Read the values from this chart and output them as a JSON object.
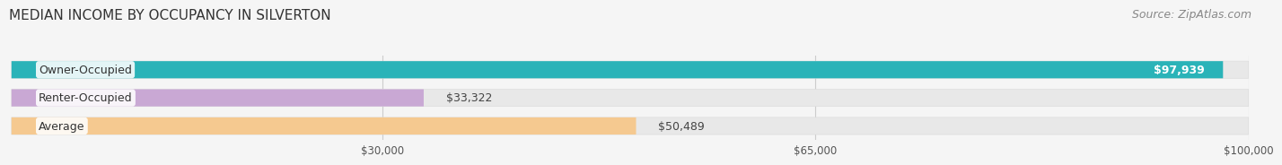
{
  "title": "MEDIAN INCOME BY OCCUPANCY IN SILVERTON",
  "source": "Source: ZipAtlas.com",
  "categories": [
    "Owner-Occupied",
    "Renter-Occupied",
    "Average"
  ],
  "values": [
    97939,
    33322,
    50489
  ],
  "bar_colors": [
    "#2ab3b8",
    "#c9a8d4",
    "#f5c990"
  ],
  "value_labels": [
    "$97,939",
    "$33,322",
    "$50,489"
  ],
  "xmax": 100000,
  "xticks": [
    0,
    30000,
    65000,
    100000
  ],
  "xtick_labels": [
    "",
    "$30,000",
    "$65,000",
    "$100,000"
  ],
  "grid_color": "#cccccc",
  "title_fontsize": 11,
  "source_fontsize": 9,
  "label_fontsize": 9,
  "bar_height": 0.55
}
